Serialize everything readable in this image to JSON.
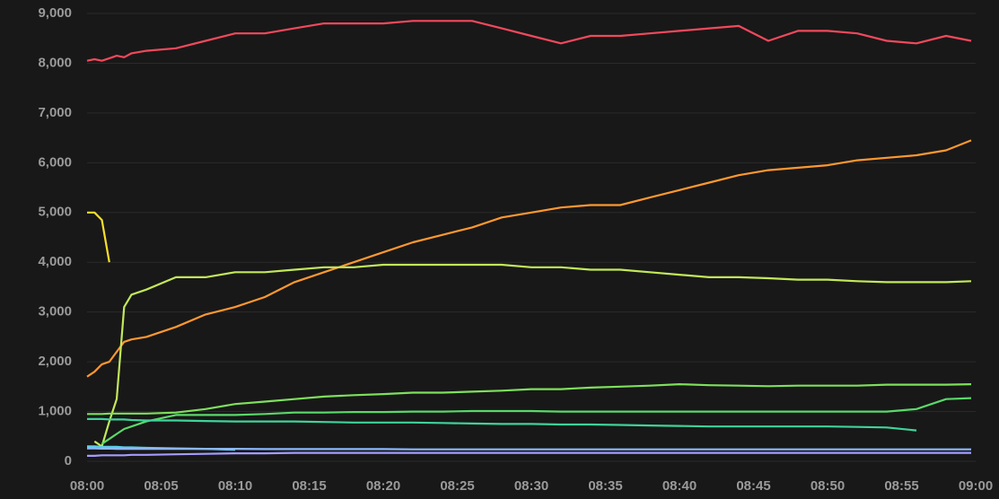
{
  "chart_data": {
    "type": "line",
    "grid": true,
    "xlim": [
      0,
      60
    ],
    "ylim": [
      0,
      9000
    ],
    "xticks": [
      {
        "value": 0,
        "label": "08:00"
      },
      {
        "value": 5,
        "label": "08:05"
      },
      {
        "value": 10,
        "label": "08:10"
      },
      {
        "value": 15,
        "label": "08:15"
      },
      {
        "value": 20,
        "label": "08:20"
      },
      {
        "value": 25,
        "label": "08:25"
      },
      {
        "value": 30,
        "label": "08:30"
      },
      {
        "value": 35,
        "label": "08:35"
      },
      {
        "value": 40,
        "label": "08:40"
      },
      {
        "value": 45,
        "label": "08:45"
      },
      {
        "value": 50,
        "label": "08:50"
      },
      {
        "value": 55,
        "label": "08:55"
      },
      {
        "value": 60,
        "label": "09:00"
      }
    ],
    "yticks": [
      0,
      {
        "value": 1000,
        "label": "1,000"
      },
      {
        "value": 2000,
        "label": "2,000"
      },
      {
        "value": 3000,
        "label": "3,000"
      },
      {
        "value": 4000,
        "label": "4,000"
      },
      {
        "value": 5000,
        "label": "5,000"
      },
      {
        "value": 6000,
        "label": "6,000"
      },
      {
        "value": 7000,
        "label": "7,000"
      },
      {
        "value": 8000,
        "label": "8,000"
      },
      {
        "value": 9000,
        "label": "9,000"
      }
    ],
    "x": [
      0,
      0.5,
      1,
      1.5,
      2,
      2.5,
      3,
      4,
      6,
      8,
      10,
      12,
      14,
      16,
      18,
      20,
      22,
      24,
      26,
      28,
      30,
      32,
      34,
      36,
      38,
      40,
      42,
      44,
      46,
      48,
      50,
      52,
      54,
      56,
      58,
      59.7
    ],
    "series": [
      {
        "color": "#f2495c",
        "values": [
          8050,
          8080,
          8050,
          8100,
          8150,
          8120,
          8200,
          8250,
          8300,
          8450,
          8600,
          8600,
          8700,
          8800,
          8800,
          8800,
          8850,
          8850,
          8850,
          8700,
          8550,
          8400,
          8550,
          8550,
          8600,
          8650,
          8700,
          8750,
          8450,
          8650,
          8650,
          8600,
          8450,
          8400,
          8550,
          8450
        ]
      },
      {
        "color": "#ff9830",
        "values": [
          1700,
          1800,
          1950,
          2000,
          2200,
          2400,
          2450,
          2500,
          2700,
          2950,
          3100,
          3300,
          3600,
          3800,
          4000,
          4200,
          4400,
          4550,
          4700,
          4900,
          5000,
          5100,
          5150,
          5150,
          5300,
          5450,
          5600,
          5750,
          5850,
          5900,
          5950,
          6050,
          6100,
          6150,
          6250,
          6450
        ]
      },
      {
        "color": "#fade2a",
        "values": [
          5000,
          5000,
          4850,
          4000,
          null,
          null,
          null,
          null,
          null,
          null,
          null,
          null,
          null,
          null,
          null,
          null,
          null,
          null,
          null,
          null,
          null,
          null,
          null,
          null,
          null,
          null,
          null,
          null,
          null,
          null,
          null,
          null,
          null,
          null,
          null,
          null
        ]
      },
      {
        "color": "#c2e85a",
        "values": [
          null,
          400,
          300,
          800,
          1250,
          3100,
          3350,
          3450,
          3700,
          3700,
          3800,
          3800,
          3850,
          3900,
          3900,
          3950,
          3950,
          3950,
          3950,
          3950,
          3900,
          3900,
          3850,
          3850,
          3800,
          3750,
          3700,
          3700,
          3680,
          3650,
          3650,
          3620,
          3600,
          3600,
          3600,
          3620
        ]
      },
      {
        "color": "#7ee05c",
        "values": [
          950,
          950,
          950,
          960,
          960,
          960,
          960,
          960,
          980,
          1050,
          1150,
          1200,
          1250,
          1300,
          1330,
          1350,
          1380,
          1380,
          1400,
          1420,
          1450,
          1450,
          1480,
          1500,
          1520,
          1550,
          1530,
          1520,
          1510,
          1520,
          1520,
          1520,
          1540,
          1540,
          1540,
          1550
        ]
      },
      {
        "color": "#5ad86a",
        "values": [
          null,
          null,
          350,
          450,
          550,
          650,
          700,
          800,
          930,
          930,
          930,
          950,
          980,
          980,
          990,
          990,
          1000,
          1000,
          1010,
          1010,
          1010,
          1000,
          1000,
          1000,
          1000,
          1000,
          1000,
          1000,
          1000,
          1000,
          1000,
          1000,
          1000,
          1050,
          1250,
          1270
        ]
      },
      {
        "color": "#3fd39a",
        "values": [
          850,
          850,
          850,
          840,
          840,
          840,
          830,
          820,
          820,
          810,
          800,
          800,
          800,
          790,
          780,
          780,
          780,
          770,
          760,
          750,
          750,
          740,
          740,
          730,
          720,
          710,
          700,
          700,
          700,
          700,
          700,
          690,
          680,
          620,
          null,
          null
        ]
      },
      {
        "color": "#5ccfe6",
        "values": [
          300,
          300,
          290,
          290,
          290,
          280,
          280,
          270,
          260,
          250,
          230,
          null,
          null,
          null,
          null,
          null,
          null,
          null,
          null,
          null,
          null,
          null,
          null,
          null,
          null,
          null,
          null,
          null,
          null,
          null,
          null,
          null,
          null,
          null,
          null,
          null
        ]
      },
      {
        "color": "#8ab8ff",
        "values": [
          260,
          260,
          255,
          255,
          250,
          250,
          250,
          250,
          250,
          250,
          250,
          245,
          245,
          245,
          245,
          245,
          240,
          240,
          240,
          240,
          240,
          240,
          240,
          240,
          240,
          240,
          240,
          240,
          240,
          240,
          240,
          240,
          240,
          240,
          240,
          240
        ]
      },
      {
        "color": "#a69cff",
        "values": [
          110,
          110,
          120,
          120,
          120,
          120,
          130,
          130,
          140,
          150,
          160,
          160,
          170,
          170,
          170,
          170,
          170,
          170,
          170,
          170,
          170,
          170,
          170,
          170,
          170,
          170,
          170,
          170,
          170,
          170,
          170,
          170,
          170,
          170,
          170,
          170
        ]
      }
    ]
  }
}
